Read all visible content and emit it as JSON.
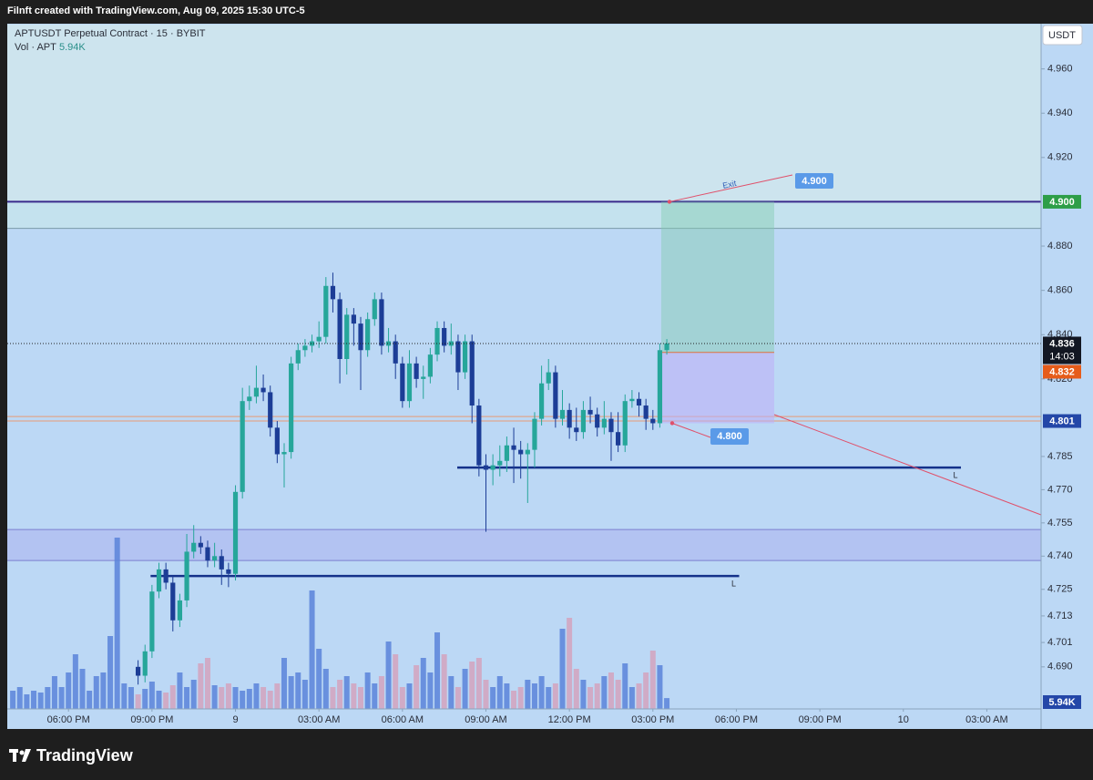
{
  "header": {
    "attribution": "Filnft created with TradingView.com, Aug 09, 2025 15:30 UTC-5"
  },
  "legend": {
    "symbol": "APTUSDT Perpetual Contract · 15 · BYBIT",
    "volume_label": "Vol · APT"
  },
  "currency_button": "USDT",
  "footer": {
    "brand": "TradingView"
  },
  "chart_data": {
    "type": "candlestick",
    "x": [
      5.5,
      5.75,
      6,
      6.25,
      6.5,
      6.75,
      7,
      7.25,
      7.5,
      7.75,
      8,
      8.25,
      8.5,
      8.75,
      9,
      9.25,
      9.5,
      9.75,
      10,
      10.25,
      10.5,
      10.75,
      11,
      11.25,
      11.5,
      11.75,
      12,
      12.25,
      12.5,
      12.75,
      13,
      13.25,
      13.5,
      13.75,
      14,
      14.25,
      14.5,
      14.75,
      15,
      15.25,
      15.5,
      15.75,
      16,
      16.25,
      16.5,
      16.75,
      17,
      17.25,
      17.5,
      17.75,
      18,
      18.25,
      18.5,
      18.75,
      19,
      19.25,
      19.5,
      19.75,
      20,
      20.25,
      20.5,
      20.75,
      21,
      21.25,
      21.5,
      21.75,
      22,
      22.25,
      22.5,
      22.75,
      23,
      23.25,
      23.5,
      23.75,
      24,
      24.25,
      24.5
    ],
    "open": [
      4.69,
      4.686,
      4.697,
      4.724,
      4.734,
      4.728,
      4.711,
      4.72,
      4.742,
      4.746,
      4.744,
      4.738,
      4.74,
      4.734,
      4.732,
      4.769,
      4.81,
      4.812,
      4.816,
      4.814,
      4.798,
      4.786,
      4.787,
      4.827,
      4.833,
      4.835,
      4.837,
      4.839,
      4.862,
      4.856,
      4.829,
      4.849,
      4.845,
      4.833,
      4.847,
      4.856,
      4.835,
      4.837,
      4.827,
      4.81,
      4.827,
      4.82,
      4.821,
      4.831,
      4.843,
      4.835,
      4.837,
      4.823,
      4.837,
      4.808,
      4.781,
      4.779,
      4.781,
      4.783,
      4.79,
      4.788,
      4.786,
      4.788,
      4.802,
      4.818,
      4.823,
      4.802,
      4.806,
      4.798,
      4.796,
      4.806,
      4.804,
      4.798,
      4.802,
      4.796,
      4.79,
      4.81,
      4.811,
      4.808,
      4.802,
      4.8,
      4.833
    ],
    "high": [
      4.693,
      4.7,
      4.727,
      4.737,
      4.737,
      4.731,
      4.723,
      4.75,
      4.754,
      4.749,
      4.747,
      4.746,
      4.743,
      4.737,
      4.772,
      4.816,
      4.817,
      4.826,
      4.822,
      4.817,
      4.801,
      4.791,
      4.83,
      4.836,
      4.838,
      4.84,
      4.846,
      4.866,
      4.868,
      4.859,
      4.852,
      4.852,
      4.848,
      4.85,
      4.859,
      4.859,
      4.843,
      4.84,
      4.83,
      4.833,
      4.83,
      4.826,
      4.834,
      4.846,
      4.846,
      4.845,
      4.84,
      4.84,
      4.84,
      4.811,
      4.786,
      4.786,
      4.79,
      4.794,
      4.798,
      4.792,
      4.791,
      4.805,
      4.826,
      4.829,
      4.826,
      4.815,
      4.809,
      4.807,
      4.81,
      4.812,
      4.807,
      4.81,
      4.805,
      4.805,
      4.813,
      4.815,
      4.814,
      4.811,
      4.806,
      4.836,
      4.838
    ],
    "low": [
      4.682,
      4.683,
      4.694,
      4.721,
      4.725,
      4.706,
      4.708,
      4.717,
      4.739,
      4.741,
      4.735,
      4.735,
      4.727,
      4.726,
      4.729,
      4.766,
      4.806,
      4.809,
      4.81,
      4.794,
      4.782,
      4.771,
      4.784,
      4.824,
      4.83,
      4.832,
      4.834,
      4.836,
      4.85,
      4.818,
      4.822,
      4.835,
      4.815,
      4.83,
      4.844,
      4.831,
      4.832,
      4.82,
      4.807,
      4.807,
      4.816,
      4.811,
      4.818,
      4.828,
      4.832,
      4.831,
      4.815,
      4.82,
      4.8,
      4.776,
      4.751,
      4.772,
      4.776,
      4.778,
      4.773,
      4.775,
      4.764,
      4.78,
      4.799,
      4.815,
      4.798,
      4.799,
      4.793,
      4.792,
      4.793,
      4.8,
      4.794,
      4.795,
      4.783,
      4.787,
      4.787,
      4.807,
      4.803,
      4.797,
      4.797,
      4.798,
      4.831
    ],
    "close": [
      4.686,
      4.697,
      4.724,
      4.734,
      4.728,
      4.711,
      4.72,
      4.742,
      4.746,
      4.744,
      4.738,
      4.74,
      4.734,
      4.732,
      4.769,
      4.81,
      4.812,
      4.816,
      4.814,
      4.798,
      4.786,
      4.787,
      4.827,
      4.833,
      4.835,
      4.837,
      4.839,
      4.862,
      4.856,
      4.829,
      4.849,
      4.845,
      4.833,
      4.847,
      4.856,
      4.835,
      4.837,
      4.827,
      4.81,
      4.827,
      4.82,
      4.821,
      4.831,
      4.843,
      4.835,
      4.837,
      4.823,
      4.837,
      4.808,
      4.781,
      4.779,
      4.781,
      4.783,
      4.79,
      4.788,
      4.786,
      4.788,
      4.802,
      4.818,
      4.823,
      4.802,
      4.806,
      4.798,
      4.796,
      4.806,
      4.804,
      4.798,
      4.802,
      4.796,
      4.79,
      4.81,
      4.811,
      4.808,
      4.802,
      4.8,
      4.833,
      4.836
    ],
    "up_color": "#26a69a",
    "down_color": "#1c3d96",
    "volume": {
      "x": [
        1,
        1.25,
        1.5,
        1.75,
        2,
        2.25,
        2.5,
        2.75,
        3,
        3.25,
        3.5,
        3.75,
        4,
        4.25,
        4.5,
        4.75,
        5,
        5.25,
        5.5,
        5.75,
        6,
        6.25,
        6.5,
        6.75,
        7,
        7.25,
        7.5,
        7.75,
        8,
        8.25,
        8.5,
        8.75,
        9,
        9.25,
        9.5,
        9.75,
        10,
        10.25,
        10.5,
        10.75,
        11,
        11.25,
        11.5,
        11.75,
        12,
        12.25,
        12.5,
        12.75,
        13,
        13.25,
        13.5,
        13.75,
        14,
        14.25,
        14.5,
        14.75,
        15,
        15.25,
        15.5,
        15.75,
        16,
        16.25,
        16.5,
        16.75,
        17,
        17.25,
        17.5,
        17.75,
        18,
        18.25,
        18.5,
        18.75,
        19,
        19.25,
        19.5,
        19.75,
        20,
        20.25,
        20.5,
        20.75,
        21,
        21.25,
        21.5,
        21.75,
        22,
        22.25,
        22.5,
        22.75,
        23,
        23.25,
        23.5,
        23.75,
        24,
        24.25,
        24.5
      ],
      "values": [
        10,
        12,
        8,
        10,
        9,
        12,
        18,
        12,
        20,
        30,
        22,
        10,
        18,
        20,
        40,
        94,
        14,
        12,
        8,
        11,
        15,
        10,
        9,
        13,
        20,
        12,
        16,
        25,
        28,
        13,
        12,
        14,
        12,
        10,
        11,
        14,
        12,
        10,
        14,
        28,
        18,
        20,
        16,
        65,
        33,
        22,
        12,
        16,
        18,
        14,
        12,
        20,
        14,
        18,
        37,
        30,
        12,
        14,
        24,
        28,
        20,
        42,
        30,
        18,
        12,
        22,
        26,
        28,
        16,
        12,
        18,
        14,
        10,
        12,
        16,
        14,
        18,
        12,
        14,
        44,
        50,
        22,
        16,
        12,
        14,
        18,
        20,
        16,
        25,
        12,
        14,
        20,
        32,
        24,
        5.94
      ],
      "value_label": "5.94K",
      "up_color": "#5b84d9",
      "down_color": "#d4a3bd"
    },
    "xlim": [
      0.8,
      37.95
    ],
    "xticks": [
      {
        "value": 3,
        "label": "06:00 PM"
      },
      {
        "value": 6,
        "label": "09:00 PM"
      },
      9,
      {
        "value": 12,
        "label": "03:00 AM"
      },
      {
        "value": 15,
        "label": "06:00 AM"
      },
      {
        "value": 18,
        "label": "09:00 AM"
      },
      {
        "value": 21,
        "label": "12:00 PM"
      },
      {
        "value": 24,
        "label": "03:00 PM"
      },
      {
        "value": 27,
        "label": "06:00 PM"
      },
      {
        "value": 30,
        "label": "09:00 PM"
      },
      {
        "value": 33,
        "label": "10"
      },
      {
        "value": 36,
        "label": "03:00 AM"
      }
    ],
    "ylim": [
      4.671,
      4.98
    ],
    "yticks": [
      {
        "value": 4.96,
        "label": "4.960"
      },
      {
        "value": 4.94,
        "label": "4.940"
      },
      {
        "value": 4.92,
        "label": "4.920"
      },
      {
        "value": 4.88,
        "label": "4.880"
      },
      {
        "value": 4.86,
        "label": "4.860"
      },
      {
        "value": 4.84,
        "label": "4.840"
      },
      {
        "value": 4.82,
        "label": "4.820"
      },
      4.785,
      {
        "value": 4.77,
        "label": "4.770"
      },
      4.755,
      {
        "value": 4.74,
        "label": "4.740"
      },
      4.725,
      4.713,
      4.701,
      {
        "value": 4.69,
        "label": "4.690"
      }
    ],
    "levels": [
      {
        "value": 4.9,
        "color": "#3a2a8c"
      },
      {
        "value": 4.888,
        "color": "#7a9aa8"
      },
      {
        "value": 4.803,
        "color": "#e79a76"
      },
      {
        "value": 4.801,
        "color": "#e79a76"
      },
      {
        "value": 4.752,
        "color": "#7c7fcf"
      },
      {
        "value": 4.738,
        "color": "#7c7fcf"
      }
    ],
    "zone": {
      "from": 4.738,
      "to": 4.752,
      "color": "#b3c3f2"
    },
    "support_lines": [
      {
        "value": 4.78,
        "from": 16.97,
        "to": 35.07,
        "label": "L"
      },
      {
        "value": 4.731,
        "from": 5.95,
        "to": 27.1,
        "label": "L"
      }
    ],
    "position": {
      "from": 24.3,
      "to": 28.36,
      "target": 4.9,
      "entry": 4.832,
      "stop": 4.8
    },
    "callouts": [
      {
        "label": "Exit",
        "value": 4.9,
        "value_label": "4.900"
      },
      {
        "value": 4.8,
        "value_label": "4.800"
      }
    ],
    "price_labels": [
      {
        "value": 4.9,
        "label": "4.900",
        "color": "#2e9e48"
      },
      {
        "value": 4.836,
        "label": "4.836",
        "color": "#131722",
        "countdown": "14:03"
      },
      {
        "value": 4.832,
        "label": "4.832",
        "color": "#e65c1a"
      },
      {
        "value": 4.801,
        "label": "4.801",
        "color": "#2447a8"
      }
    ]
  }
}
